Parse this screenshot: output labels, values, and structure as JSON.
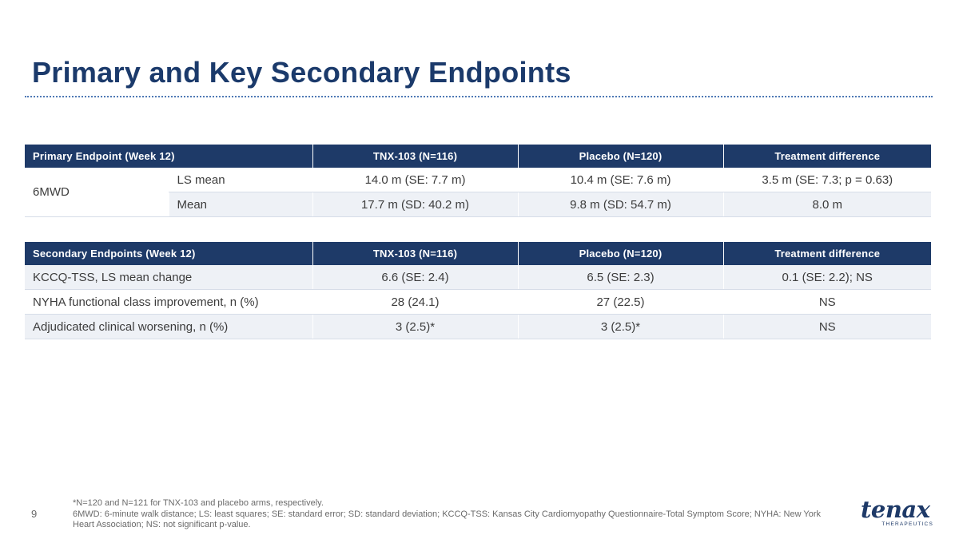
{
  "slide": {
    "title": "Primary and Key Secondary Endpoints",
    "page_number": "9"
  },
  "primary_table": {
    "headers": [
      "Primary Endpoint (Week 12)",
      "TNX-103 (N=116)",
      "Placebo (N=120)",
      "Treatment difference"
    ],
    "endpoint": "6MWD",
    "rows": [
      {
        "measure": "LS mean",
        "tnx": "14.0 m (SE: 7.7 m)",
        "placebo": "10.4 m (SE: 7.6 m)",
        "difference": "3.5 m (SE: 7.3; p = 0.63)"
      },
      {
        "measure": "Mean",
        "tnx": "17.7 m (SD: 40.2 m)",
        "placebo": "9.8 m (SD: 54.7 m)",
        "difference": "8.0 m"
      }
    ]
  },
  "secondary_table": {
    "headers": [
      "Secondary Endpoints (Week 12)",
      "TNX-103 (N=116)",
      "Placebo (N=120)",
      "Treatment difference"
    ],
    "rows": [
      {
        "endpoint": "KCCQ-TSS, LS mean change",
        "tnx": "6.6 (SE: 2.4)",
        "placebo": "6.5 (SE: 2.3)",
        "difference": "0.1 (SE: 2.2); NS"
      },
      {
        "endpoint": "NYHA functional class improvement, n (%)",
        "tnx": "28 (24.1)",
        "placebo": "27 (22.5)",
        "difference": "NS"
      },
      {
        "endpoint": "Adjudicated clinical worsening, n (%)",
        "tnx": "3 (2.5)*",
        "placebo": "3 (2.5)*",
        "difference": "NS"
      }
    ]
  },
  "footnotes": {
    "line1": "*N=120 and N=121 for TNX-103 and placebo arms, respectively.",
    "line2": "6MWD: 6-minute walk distance; LS: least squares; SE: standard error; SD: standard deviation; KCCQ-TSS: Kansas City Cardiomyopathy Questionnaire-Total Symptom Score; NYHA: New York Heart Association; NS: not significant p-value."
  },
  "logo": {
    "name": "tenax",
    "subtitle": "THERAPEUTICS",
    "color": "#1e3a68"
  },
  "colors": {
    "title": "#1b3a6b",
    "header_bg": "#1e3a68",
    "row_tint": "#eef1f6",
    "rule": "#4f79b5"
  }
}
